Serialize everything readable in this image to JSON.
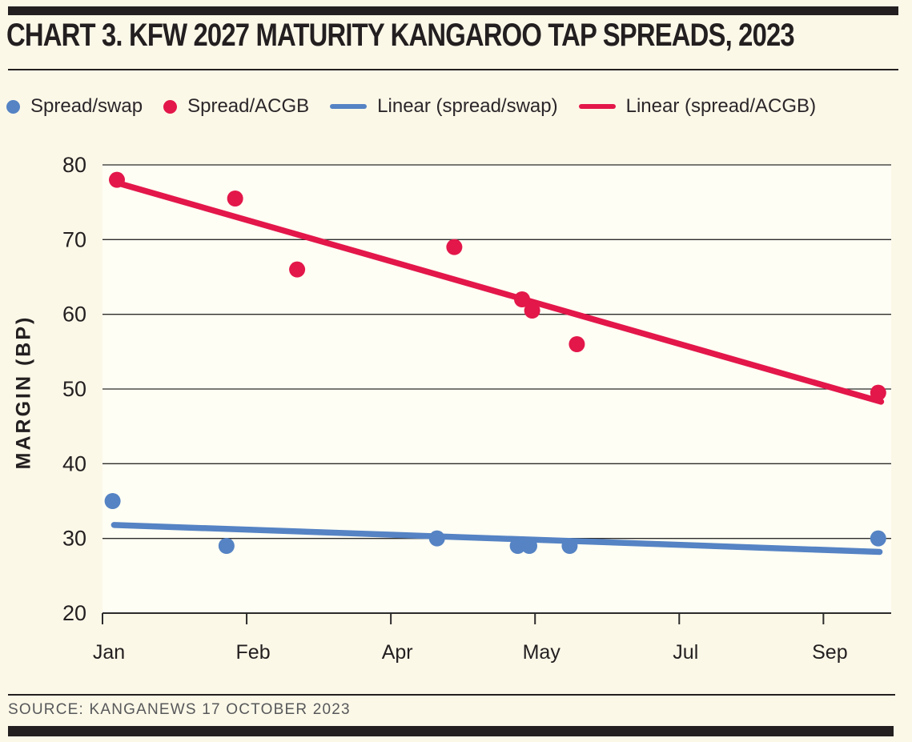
{
  "page": {
    "title": "CHART 3. KFW 2027 MATURITY KANGAROO TAP SPREADS, 2023",
    "source": "SOURCE: KANGANEWS 17 OCTOBER 2023"
  },
  "colors": {
    "background": "#fcf8e8",
    "plot_background": "#fffef4",
    "dark": "#231f20",
    "grid": "#2b2b2b",
    "red": "#e3174a",
    "blue": "#5583c4",
    "source_text": "#57585a"
  },
  "legend": [
    {
      "label": "Spread/swap",
      "marker": "dot",
      "color": "#5583c4"
    },
    {
      "label": "Spread/ACGB",
      "marker": "dot",
      "color": "#e3174a"
    },
    {
      "label": "Linear (spread/swap)",
      "marker": "line",
      "color": "#5583c4"
    },
    {
      "label": "Linear (spread/ACGB)",
      "marker": "line",
      "color": "#e3174a"
    }
  ],
  "chart_data": {
    "type": "scatter",
    "title": "CHART 3. KFW 2027 MATURITY KANGAROO TAP SPREADS, 2023",
    "xlabel": "",
    "ylabel": "MARGIN (BP)",
    "ylim": [
      20,
      80
    ],
    "yticks": [
      20,
      30,
      40,
      50,
      60,
      70,
      80
    ],
    "grid": "horizontal",
    "legend_position": "top",
    "x_axis": {
      "tick_labels": [
        "Jan",
        "Feb",
        "Apr",
        "May",
        "Jul",
        "Sep"
      ],
      "tick_positions": [
        0,
        1,
        2,
        3,
        4,
        5
      ],
      "xlim": [
        0,
        5.47
      ]
    },
    "series": [
      {
        "name": "Spread/swap",
        "kind": "scatter",
        "color": "#5583c4",
        "points": [
          [
            0.07,
            35
          ],
          [
            0.86,
            29
          ],
          [
            2.32,
            30
          ],
          [
            2.88,
            29
          ],
          [
            2.96,
            29
          ],
          [
            3.24,
            29
          ],
          [
            5.38,
            30
          ]
        ]
      },
      {
        "name": "Spread/ACGB",
        "kind": "scatter",
        "color": "#e3174a",
        "points": [
          [
            0.1,
            78
          ],
          [
            0.92,
            75.5
          ],
          [
            1.35,
            66
          ],
          [
            2.44,
            69
          ],
          [
            2.91,
            62
          ],
          [
            2.98,
            60.5
          ],
          [
            3.29,
            56
          ],
          [
            5.38,
            49.5
          ]
        ]
      },
      {
        "name": "Linear (spread/swap)",
        "kind": "trendline",
        "color": "#5583c4",
        "points": [
          [
            0.08,
            31.8
          ],
          [
            5.39,
            28.2
          ]
        ]
      },
      {
        "name": "Linear (spread/ACGB)",
        "kind": "trendline",
        "color": "#e3174a",
        "points": [
          [
            0.1,
            77.6
          ],
          [
            5.4,
            48.3
          ]
        ]
      }
    ]
  }
}
